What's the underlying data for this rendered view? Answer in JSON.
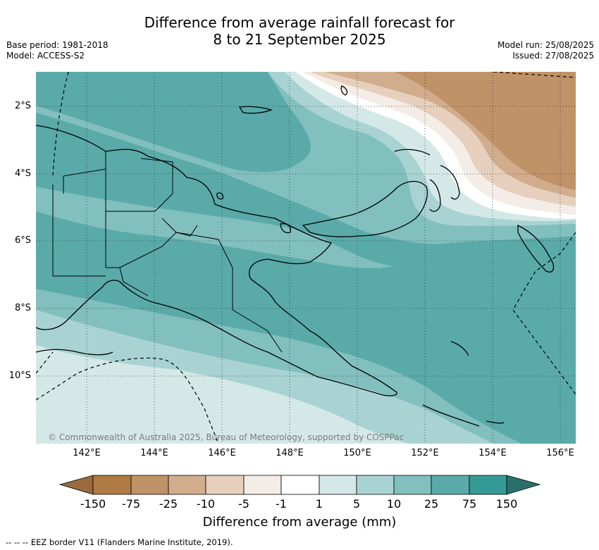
{
  "header": {
    "title_line1": "Difference from average rainfall forecast for",
    "title_line2": "8 to 21 September 2025",
    "base_period": "Base period: 1981-2018",
    "model": "Model: ACCESS-S2",
    "model_run": "Model run: 25/08/2025",
    "issued": "Issued: 27/08/2025"
  },
  "map": {
    "lat_labels": [
      "2°S",
      "4°S",
      "6°S",
      "8°S",
      "10°S"
    ],
    "lon_labels": [
      "142°E",
      "144°E",
      "146°E",
      "148°E",
      "150°E",
      "152°E",
      "154°E",
      "156°E"
    ],
    "copyright": "© Commonwealth of Australia 2025, Bureau of Meteorology, supported by COSPPac",
    "colors": {
      "band_75": "#5aaaaa",
      "band_25": "#82bfbf",
      "band_10": "#a9d3d3",
      "band_5": "#d5e8e8",
      "band_1": "#ffffff",
      "band_m1": "#f4ece7",
      "band_m5": "#e6d0bd",
      "band_m10": "#d1ad8d",
      "band_m25": "#c09268"
    }
  },
  "colorbar": {
    "labels": [
      "-150",
      "-75",
      "-25",
      "-10",
      "-5",
      "-1",
      "1",
      "5",
      "10",
      "25",
      "75",
      "150"
    ],
    "colors": [
      "#9a6a3c",
      "#b07a44",
      "#c09268",
      "#d1ad8d",
      "#e6d0bd",
      "#f4ece7",
      "#ffffff",
      "#d5e8e8",
      "#a9d3d3",
      "#82bfbf",
      "#5aaaaa",
      "#359a95",
      "#2b6f6c"
    ],
    "title": "Difference from average (mm)"
  },
  "footnote": "--  --  -- EEZ border V11 (Flanders Marine Institute, 2019)."
}
